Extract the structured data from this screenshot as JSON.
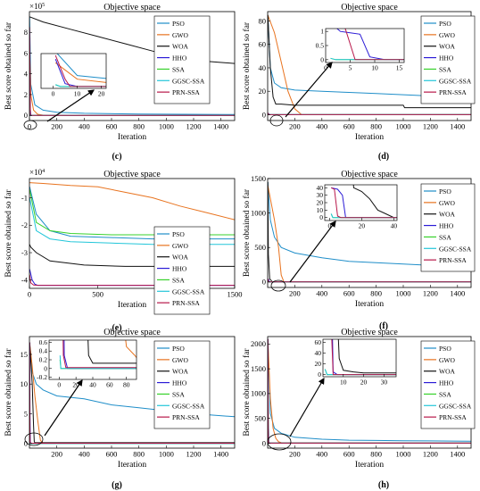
{
  "figure": {
    "panels": [
      {
        "letter": "(c)",
        "title": "Objective space",
        "xlabel": "Iteration",
        "ylabel": "Best score obtained so far",
        "exponent": "5"
      },
      {
        "letter": "(d)",
        "title": "Objective space",
        "xlabel": "Iteration",
        "ylabel": "Best score obtained so far",
        "exponent": ""
      },
      {
        "letter": "(e)",
        "title": "Objective space",
        "xlabel": "Iteration",
        "ylabel": "Best score obtained so far",
        "exponent": "4"
      },
      {
        "letter": "(f)",
        "title": "Objective space",
        "xlabel": "Iteration",
        "ylabel": "Best score obtained so far",
        "exponent": ""
      },
      {
        "letter": "(g)",
        "title": "Objective space",
        "xlabel": "Iteration",
        "ylabel": "Best score obtained so far",
        "exponent": ""
      },
      {
        "letter": "(h)",
        "title": "Objective space",
        "xlabel": "Iteration",
        "ylabel": "Best score obtained so far",
        "exponent": ""
      }
    ]
  },
  "colors": {
    "PSO": "#1f8ec9",
    "GWO": "#e8731f",
    "WOA": "#111111",
    "HHO": "#2b1bd6",
    "SSA": "#37d12b",
    "GGSC-SSA": "#22c6d9",
    "PRN-SSA": "#b8174a"
  },
  "chart_data": [
    {
      "type": "line",
      "title": "Objective space",
      "xlabel": "Iteration",
      "ylabel": "Best score obtained so far",
      "xlim": [
        0,
        1500
      ],
      "ylim": [
        -0.5,
        10
      ],
      "y_exponent_label": "×10^5",
      "xticks": [
        "0",
        "200",
        "400",
        "600",
        "800",
        "1000",
        "1200",
        "1400"
      ],
      "yticks": [
        "0",
        "2",
        "4",
        "6",
        "8"
      ],
      "legend": "top-right",
      "series": [
        {
          "name": "PSO",
          "x": [
            1,
            10,
            40,
            100,
            200,
            400,
            800,
            1500
          ],
          "y": [
            9.5,
            3.0,
            1.0,
            0.5,
            0.3,
            0.2,
            0.12,
            0.08
          ]
        },
        {
          "name": "GWO",
          "x": [
            1,
            10,
            30,
            60,
            100,
            150,
            1500
          ],
          "y": [
            6.5,
            2.0,
            0.5,
            0.1,
            0.02,
            0,
            0
          ]
        },
        {
          "name": "WOA",
          "x": [
            1,
            100,
            300,
            500,
            700,
            900,
            1100,
            1300,
            1500
          ],
          "y": [
            9.5,
            9.0,
            8.3,
            7.6,
            6.9,
            6.2,
            5.6,
            5.2,
            5.0
          ]
        },
        {
          "name": "HHO",
          "x": [
            1,
            5,
            10,
            1500
          ],
          "y": [
            7.5,
            0.8,
            0,
            0
          ]
        },
        {
          "name": "SSA",
          "x": [
            1,
            3,
            1500
          ],
          "y": [
            0.5,
            0,
            0
          ]
        },
        {
          "name": "GGSC-SSA",
          "x": [
            1,
            3,
            1500
          ],
          "y": [
            0.5,
            0,
            0
          ]
        },
        {
          "name": "PRN-SSA",
          "x": [
            1,
            5,
            7,
            1500
          ],
          "y": [
            8.5,
            2.0,
            0,
            0
          ]
        }
      ],
      "inset": {
        "xlim": [
          -5,
          22
        ],
        "ylim": [
          -0.5,
          9
        ],
        "xticks": [
          "0",
          "10",
          "20"
        ]
      }
    },
    {
      "type": "line",
      "title": "Objective space",
      "xlabel": "Iteration",
      "ylabel": "Best score obtained so far",
      "xlim": [
        0,
        1500
      ],
      "ylim": [
        -5,
        88
      ],
      "xticks": [
        "200",
        "400",
        "600",
        "800",
        "1000",
        "1200",
        "1400"
      ],
      "yticks": [
        "0",
        "20",
        "40",
        "60",
        "80"
      ],
      "legend": "top-right",
      "series": [
        {
          "name": "PSO",
          "x": [
            1,
            20,
            50,
            100,
            200,
            400,
            600,
            800,
            1000,
            1200,
            1500
          ],
          "y": [
            85,
            40,
            27,
            23,
            21,
            20,
            19,
            18,
            17,
            16,
            14
          ]
        },
        {
          "name": "GWO",
          "x": [
            1,
            50,
            100,
            150,
            200,
            250,
            1500
          ],
          "y": [
            85,
            70,
            45,
            20,
            5,
            0,
            0
          ]
        },
        {
          "name": "WOA",
          "x": [
            1,
            20,
            40,
            60,
            100,
            200,
            1000,
            1010,
            1500
          ],
          "y": [
            85,
            40,
            15,
            9,
            9,
            8,
            8,
            6,
            6
          ]
        },
        {
          "name": "HHO",
          "x": [
            1,
            3,
            5,
            7,
            9,
            12,
            1500
          ],
          "y": [
            1.3,
            1.0,
            0.95,
            0.9,
            0.1,
            0,
            0
          ]
        },
        {
          "name": "SSA",
          "x": [
            1,
            2,
            1500
          ],
          "y": [
            0.05,
            0,
            0
          ]
        },
        {
          "name": "GGSC-SSA",
          "x": [
            1,
            2,
            1500
          ],
          "y": [
            0.05,
            0,
            0
          ]
        },
        {
          "name": "PRN-SSA",
          "x": [
            1,
            2,
            4,
            6,
            1500
          ],
          "y": [
            1.3,
            1.2,
            1.1,
            0,
            0
          ]
        }
      ],
      "inset": {
        "xlim": [
          0,
          16
        ],
        "ylim": [
          -0.1,
          1.1
        ],
        "xticks": [
          "0",
          "5",
          "10",
          "15"
        ],
        "yticks": [
          "0",
          "0.5",
          "1"
        ]
      }
    },
    {
      "type": "line",
      "title": "Objective space",
      "xlabel": "Iteration",
      "ylabel": "Best score obtained so far",
      "xlim": [
        0,
        1500
      ],
      "ylim": [
        -4.3,
        -0.3
      ],
      "y_exponent_label": "×10^4",
      "xticks": [
        "0",
        "500",
        "1000",
        "1500"
      ],
      "yticks": [
        "-1",
        "-2",
        "-3",
        "-4"
      ],
      "legend": "right",
      "series": [
        {
          "name": "PSO",
          "x": [
            1,
            50,
            150,
            300,
            600,
            900,
            1200,
            1500
          ],
          "y": [
            -0.6,
            -1.6,
            -2.2,
            -2.4,
            -2.45,
            -2.5,
            -2.5,
            -2.5
          ]
        },
        {
          "name": "GWO",
          "x": [
            1,
            100,
            300,
            500,
            700,
            900,
            1100,
            1300,
            1500
          ],
          "y": [
            -0.45,
            -0.48,
            -0.55,
            -0.6,
            -0.8,
            -1.0,
            -1.3,
            -1.55,
            -1.8
          ]
        },
        {
          "name": "WOA",
          "x": [
            1,
            10,
            50,
            150,
            400,
            700,
            1000,
            1500
          ],
          "y": [
            -2.7,
            -2.8,
            -3.0,
            -3.3,
            -3.45,
            -3.5,
            -3.5,
            -3.5
          ]
        },
        {
          "name": "HHO",
          "x": [
            1,
            20,
            40,
            60,
            1500
          ],
          "y": [
            -3.6,
            -4.0,
            -4.15,
            -4.19,
            -4.19
          ]
        },
        {
          "name": "SSA",
          "x": [
            1,
            50,
            150,
            300,
            600,
            900,
            1200,
            1500
          ],
          "y": [
            -0.7,
            -1.9,
            -2.2,
            -2.3,
            -2.35,
            -2.35,
            -2.35,
            -2.35
          ]
        },
        {
          "name": "GGSC-SSA",
          "x": [
            1,
            50,
            150,
            300,
            600,
            900,
            1200,
            1500
          ],
          "y": [
            -1.0,
            -2.2,
            -2.5,
            -2.6,
            -2.65,
            -2.7,
            -2.7,
            -2.7
          ]
        },
        {
          "name": "PRN-SSA",
          "x": [
            1,
            10,
            30,
            60,
            1500
          ],
          "y": [
            -3.8,
            -4.1,
            -4.18,
            -4.19,
            -4.19
          ]
        }
      ]
    },
    {
      "type": "line",
      "title": "Objective space",
      "xlabel": "Iteration",
      "ylabel": "Best score obtained so far",
      "xlim": [
        0,
        1500
      ],
      "ylim": [
        -80,
        1500
      ],
      "xticks": [
        "200",
        "400",
        "600",
        "800",
        "1000",
        "1200",
        "1400"
      ],
      "yticks": [
        "0",
        "500",
        "1000",
        "1500"
      ],
      "legend": "top-right",
      "series": [
        {
          "name": "PSO",
          "x": [
            1,
            20,
            50,
            100,
            200,
            400,
            600,
            800,
            1000,
            1200,
            1500
          ],
          "y": [
            1450,
            900,
            650,
            500,
            420,
            350,
            300,
            280,
            260,
            240,
            210
          ]
        },
        {
          "name": "GWO",
          "x": [
            1,
            50,
            80,
            100,
            120,
            1500
          ],
          "y": [
            1400,
            900,
            500,
            100,
            0,
            0
          ]
        },
        {
          "name": "WOA",
          "x": [
            1,
            5,
            15,
            20,
            25,
            30,
            35,
            40,
            1500
          ],
          "y": [
            1450,
            400,
            40,
            35,
            25,
            10,
            5,
            0,
            0
          ]
        },
        {
          "name": "HHO",
          "x": [
            1,
            5,
            8,
            10,
            1500
          ],
          "y": [
            40,
            38,
            30,
            0,
            0
          ]
        },
        {
          "name": "SSA",
          "x": [
            1,
            2,
            1500
          ],
          "y": [
            5,
            0,
            0
          ]
        },
        {
          "name": "GGSC-SSA",
          "x": [
            1,
            2,
            1500
          ],
          "y": [
            5,
            0,
            0
          ]
        },
        {
          "name": "PRN-SSA",
          "x": [
            1,
            3,
            5,
            7,
            1500
          ],
          "y": [
            40,
            38,
            2,
            0,
            0
          ]
        }
      ],
      "inset": {
        "xlim": [
          -3,
          42
        ],
        "ylim": [
          -4,
          44
        ],
        "xticks": [
          "0",
          "20",
          "40"
        ],
        "yticks": [
          "0",
          "10",
          "20",
          "30",
          "40"
        ]
      }
    },
    {
      "type": "line",
      "title": "Objective space",
      "xlabel": "Iteration",
      "ylabel": "Best score obtained so far",
      "xlim": [
        0,
        1500
      ],
      "ylim": [
        -0.8,
        18
      ],
      "xticks": [
        "200",
        "400",
        "600",
        "800",
        "1000",
        "1200",
        "1400"
      ],
      "yticks": [
        "0",
        "5",
        "10",
        "15"
      ],
      "legend": "top-right",
      "series": [
        {
          "name": "PSO",
          "x": [
            1,
            20,
            50,
            100,
            200,
            400,
            600,
            800,
            1000,
            1200,
            1500
          ],
          "y": [
            17,
            12,
            10,
            9,
            8,
            7.5,
            6.5,
            6,
            5.5,
            5,
            4.5
          ]
        },
        {
          "name": "GWO",
          "x": [
            1,
            20,
            40,
            60,
            80,
            90,
            100,
            1500
          ],
          "y": [
            17,
            13,
            8,
            4,
            0.5,
            0.3,
            0.05,
            0.05
          ]
        },
        {
          "name": "WOA",
          "x": [
            1,
            20,
            30,
            35,
            40,
            50,
            1500
          ],
          "y": [
            17,
            10,
            3,
            0.3,
            0.12,
            0.12,
            0.12
          ]
        },
        {
          "name": "HHO",
          "x": [
            1,
            4,
            6,
            10,
            1500
          ],
          "y": [
            17,
            5,
            0.3,
            0,
            0
          ]
        },
        {
          "name": "SSA",
          "x": [
            1,
            2,
            1500
          ],
          "y": [
            0.2,
            0,
            0
          ]
        },
        {
          "name": "GGSC-SSA",
          "x": [
            1,
            2,
            1500
          ],
          "y": [
            0.3,
            0,
            0
          ]
        },
        {
          "name": "PRN-SSA",
          "x": [
            1,
            3,
            5,
            8,
            1500
          ],
          "y": [
            17,
            3,
            0.3,
            0.02,
            0.02
          ]
        }
      ],
      "inset": {
        "xlim": [
          -12,
          92
        ],
        "ylim": [
          -0.25,
          0.65
        ],
        "xticks": [
          "0",
          "20",
          "40",
          "60",
          "80"
        ],
        "yticks": [
          "-0.2",
          "0",
          "0.2",
          "0.4",
          "0.6"
        ]
      }
    },
    {
      "type": "line",
      "title": "Objective space",
      "xlabel": "Iteration",
      "ylabel": "Best score obtained so far",
      "xlim": [
        0,
        1500
      ],
      "ylim": [
        -100,
        2150
      ],
      "xticks": [
        "200",
        "400",
        "600",
        "800",
        "1000",
        "1200",
        "1400"
      ],
      "yticks": [
        "0",
        "500",
        "1000",
        "1500",
        "2000"
      ],
      "legend": "top-right",
      "series": [
        {
          "name": "PSO",
          "x": [
            1,
            20,
            50,
            100,
            200,
            400,
            600,
            800,
            1000,
            1200,
            1500
          ],
          "y": [
            2100,
            600,
            300,
            200,
            120,
            80,
            60,
            55,
            50,
            45,
            40
          ]
        },
        {
          "name": "GWO",
          "x": [
            1,
            20,
            40,
            60,
            80,
            100,
            1500
          ],
          "y": [
            2100,
            900,
            300,
            100,
            30,
            10,
            5
          ]
        },
        {
          "name": "WOA",
          "x": [
            1,
            5,
            8,
            10,
            15,
            20,
            1500
          ],
          "y": [
            2100,
            300,
            30,
            8,
            5,
            3,
            2
          ]
        },
        {
          "name": "HHO",
          "x": [
            1,
            3,
            5,
            7,
            1500
          ],
          "y": [
            2100,
            400,
            5,
            0,
            0
          ]
        },
        {
          "name": "SSA",
          "x": [
            1,
            2,
            1500
          ],
          "y": [
            10,
            0,
            0
          ]
        },
        {
          "name": "GGSC-SSA",
          "x": [
            1,
            2,
            1500
          ],
          "y": [
            10,
            0,
            0
          ]
        },
        {
          "name": "PRN-SSA",
          "x": [
            1,
            3,
            5,
            1500
          ],
          "y": [
            2100,
            200,
            0,
            0
          ]
        }
      ],
      "inset": {
        "xlim": [
          0,
          36
        ],
        "ylim": [
          -4,
          66
        ],
        "xticks": [
          "10",
          "20",
          "30"
        ],
        "yticks": [
          "0",
          "20",
          "40",
          "60"
        ]
      }
    }
  ]
}
